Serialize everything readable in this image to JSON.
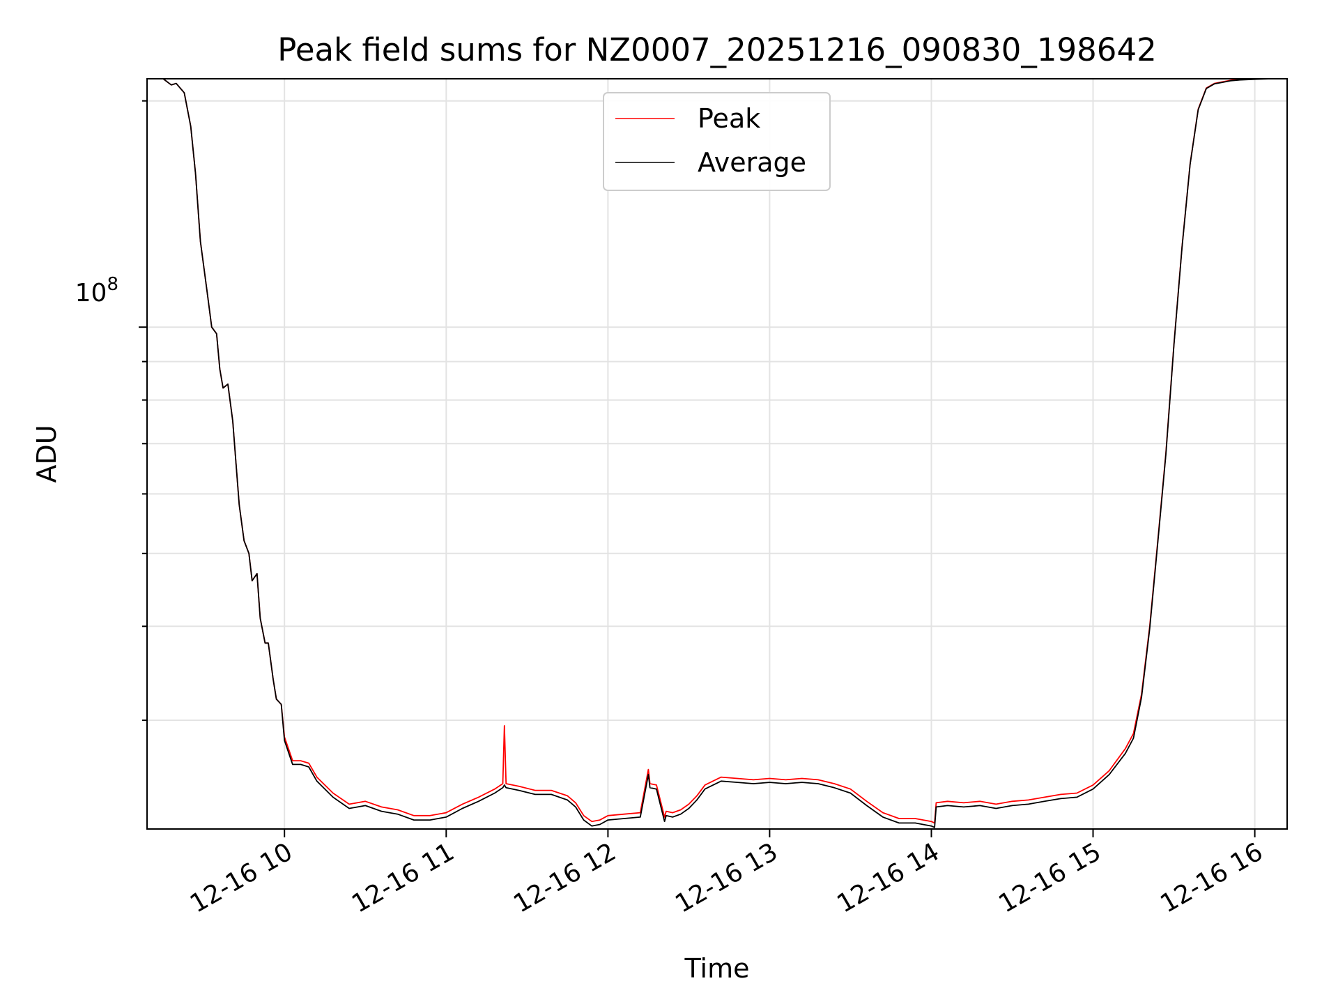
{
  "chart_data": {
    "type": "line",
    "title": "Peak field sums for NZ0007_20251216_090830_198642",
    "xlabel": "Time",
    "ylabel": "ADU",
    "y_scale": "log",
    "y_tick_label": {
      "base": "10",
      "exponent": "8"
    },
    "grid": true,
    "legend_position": "top-center",
    "x_range_hours": [
      9.15,
      16.2
    ],
    "y_range": [
      21500000,
      214000000
    ],
    "x_ticks": [
      {
        "hour": 10,
        "label": "12-16 10"
      },
      {
        "hour": 11,
        "label": "12-16 11"
      },
      {
        "hour": 12,
        "label": "12-16 12"
      },
      {
        "hour": 13,
        "label": "12-16 13"
      },
      {
        "hour": 14,
        "label": "12-16 14"
      },
      {
        "hour": 15,
        "label": "12-16 15"
      },
      {
        "hour": 16,
        "label": "12-16 16"
      }
    ],
    "y_grid_values": [
      30000000,
      40000000,
      50000000,
      60000000,
      70000000,
      80000000,
      90000000,
      100000000,
      200000000
    ],
    "series": [
      {
        "name": "Peak",
        "color": "#ff0000",
        "x_hours": [
          9.15,
          9.25,
          9.3,
          9.33,
          9.38,
          9.42,
          9.45,
          9.48,
          9.52,
          9.55,
          9.58,
          9.6,
          9.62,
          9.65,
          9.68,
          9.7,
          9.72,
          9.75,
          9.78,
          9.8,
          9.83,
          9.85,
          9.88,
          9.9,
          9.93,
          9.95,
          9.98,
          10.0,
          10.05,
          10.1,
          10.15,
          10.2,
          10.3,
          10.4,
          10.5,
          10.6,
          10.7,
          10.8,
          10.9,
          11.0,
          11.1,
          11.2,
          11.3,
          11.35,
          11.36,
          11.37,
          11.45,
          11.55,
          11.65,
          11.75,
          11.8,
          11.85,
          11.9,
          11.95,
          12.0,
          12.1,
          12.2,
          12.25,
          12.26,
          12.3,
          12.35,
          12.36,
          12.4,
          12.45,
          12.5,
          12.55,
          12.6,
          12.7,
          12.8,
          12.9,
          13.0,
          13.1,
          13.2,
          13.3,
          13.4,
          13.5,
          13.6,
          13.7,
          13.8,
          13.9,
          14.0,
          14.02,
          14.03,
          14.1,
          14.2,
          14.3,
          14.4,
          14.5,
          14.6,
          14.7,
          14.8,
          14.9,
          15.0,
          15.1,
          15.2,
          15.25,
          15.3,
          15.35,
          15.4,
          15.45,
          15.5,
          15.55,
          15.6,
          15.65,
          15.7,
          15.75,
          15.8,
          15.85,
          15.9,
          16.0,
          16.1,
          16.2
        ],
        "values": [
          214000000,
          214000000,
          210000000,
          211000000,
          205000000,
          185000000,
          160000000,
          130000000,
          112000000,
          100000000,
          98000000,
          88000000,
          83000000,
          84000000,
          75000000,
          66000000,
          58000000,
          52000000,
          50000000,
          46000000,
          47000000,
          41000000,
          38000000,
          38000000,
          34000000,
          32000000,
          31500000,
          28500000,
          26500000,
          26500000,
          26300000,
          25200000,
          24000000,
          23200000,
          23400000,
          23000000,
          22800000,
          22400000,
          22400000,
          22600000,
          23200000,
          23700000,
          24300000,
          24700000,
          29500000,
          24700000,
          24500000,
          24200000,
          24200000,
          23800000,
          23300000,
          22400000,
          22000000,
          22100000,
          22400000,
          22500000,
          22600000,
          25800000,
          24700000,
          24600000,
          22300000,
          22700000,
          22600000,
          22800000,
          23200000,
          23800000,
          24600000,
          25200000,
          25100000,
          25000000,
          25100000,
          25000000,
          25100000,
          25000000,
          24700000,
          24300000,
          23400000,
          22600000,
          22200000,
          22200000,
          22000000,
          21900000,
          23300000,
          23400000,
          23300000,
          23400000,
          23200000,
          23400000,
          23500000,
          23700000,
          23900000,
          24000000,
          24600000,
          25700000,
          27500000,
          28800000,
          32500000,
          40000000,
          52000000,
          68000000,
          95000000,
          128000000,
          165000000,
          195000000,
          208000000,
          211000000,
          212000000,
          213000000,
          213500000,
          214000000,
          214000000,
          214000000
        ]
      },
      {
        "name": "Average",
        "color": "#000000",
        "x_hours": [
          9.15,
          9.25,
          9.3,
          9.33,
          9.38,
          9.42,
          9.45,
          9.48,
          9.52,
          9.55,
          9.58,
          9.6,
          9.62,
          9.65,
          9.68,
          9.7,
          9.72,
          9.75,
          9.78,
          9.8,
          9.83,
          9.85,
          9.88,
          9.9,
          9.93,
          9.95,
          9.98,
          10.0,
          10.05,
          10.1,
          10.15,
          10.2,
          10.3,
          10.4,
          10.5,
          10.6,
          10.7,
          10.8,
          10.9,
          11.0,
          11.1,
          11.2,
          11.3,
          11.35,
          11.36,
          11.37,
          11.45,
          11.55,
          11.65,
          11.75,
          11.8,
          11.85,
          11.9,
          11.95,
          12.0,
          12.1,
          12.2,
          12.25,
          12.26,
          12.3,
          12.35,
          12.36,
          12.4,
          12.45,
          12.5,
          12.55,
          12.6,
          12.7,
          12.8,
          12.9,
          13.0,
          13.1,
          13.2,
          13.3,
          13.4,
          13.5,
          13.6,
          13.7,
          13.8,
          13.9,
          14.0,
          14.02,
          14.03,
          14.1,
          14.2,
          14.3,
          14.4,
          14.5,
          14.6,
          14.7,
          14.8,
          14.9,
          15.0,
          15.1,
          15.2,
          15.25,
          15.3,
          15.35,
          15.4,
          15.45,
          15.5,
          15.55,
          15.6,
          15.65,
          15.7,
          15.75,
          15.8,
          15.85,
          15.9,
          16.0,
          16.1,
          16.2
        ],
        "values": [
          214000000,
          214000000,
          210000000,
          211000000,
          205000000,
          185000000,
          160000000,
          130000000,
          112000000,
          100000000,
          98000000,
          88000000,
          83000000,
          84000000,
          75000000,
          66000000,
          58000000,
          52000000,
          50000000,
          46000000,
          47000000,
          41000000,
          38000000,
          38000000,
          34000000,
          32000000,
          31500000,
          28200000,
          26200000,
          26200000,
          26000000,
          24900000,
          23700000,
          22900000,
          23100000,
          22700000,
          22500000,
          22100000,
          22100000,
          22300000,
          22900000,
          23400000,
          24000000,
          24400000,
          24600000,
          24400000,
          24200000,
          23900000,
          23900000,
          23500000,
          23000000,
          22100000,
          21700000,
          21800000,
          22100000,
          22200000,
          22300000,
          25400000,
          24400000,
          24300000,
          22000000,
          22400000,
          22300000,
          22500000,
          22900000,
          23500000,
          24300000,
          24900000,
          24800000,
          24700000,
          24800000,
          24700000,
          24800000,
          24700000,
          24400000,
          24000000,
          23100000,
          22300000,
          21900000,
          21900000,
          21700000,
          21600000,
          23000000,
          23100000,
          23000000,
          23100000,
          22900000,
          23100000,
          23200000,
          23400000,
          23600000,
          23700000,
          24300000,
          25400000,
          27100000,
          28400000,
          32200000,
          39700000,
          51700000,
          67700000,
          94700000,
          127700000,
          164700000,
          194700000,
          207700000,
          210700000,
          211700000,
          212700000,
          213200000,
          213700000,
          214000000,
          214000000
        ]
      }
    ]
  }
}
